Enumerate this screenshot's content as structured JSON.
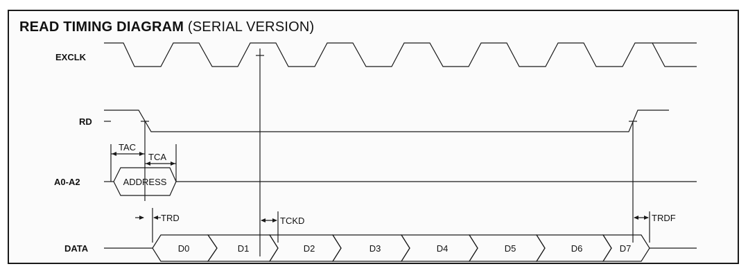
{
  "diagram": {
    "title_bold": "READ TIMING DIAGRAM",
    "title_rest": " (SERIAL VERSION)",
    "signals": {
      "exclk": "EXCLK",
      "rd": "RD",
      "addr": "A0-A2",
      "data": "DATA"
    },
    "timing": {
      "tac": "TAC",
      "tca": "TCA",
      "trd": "TRD",
      "tckd": "TCKD",
      "trdf": "TRDF"
    },
    "address_label": "ADDRESS",
    "data_words": [
      "D0",
      "D1",
      "D2",
      "D3",
      "D4",
      "D5",
      "D6",
      "D7"
    ]
  }
}
